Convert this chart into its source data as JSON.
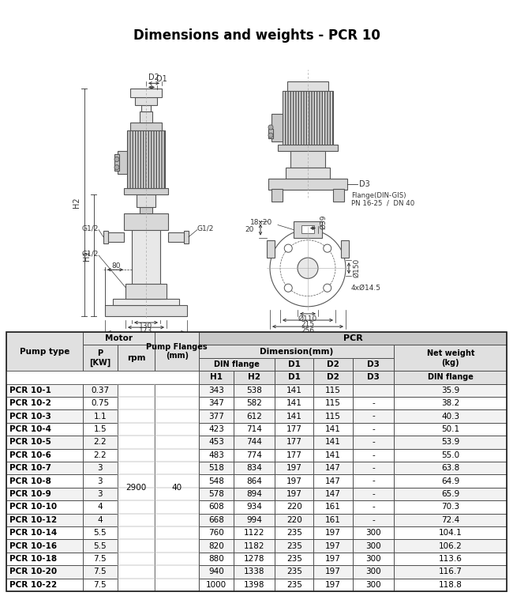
{
  "title": "Dimensions and weights - PCR 10",
  "title_fontsize": 12,
  "rows": [
    [
      "PCR 10-1",
      "0.37",
      "343",
      "538",
      "141",
      "115",
      "",
      "35.9"
    ],
    [
      "PCR 10-2",
      "0.75",
      "347",
      "582",
      "141",
      "115",
      "-",
      "38.2"
    ],
    [
      "PCR 10-3",
      "1.1",
      "377",
      "612",
      "141",
      "115",
      "-",
      "40.3"
    ],
    [
      "PCR 10-4",
      "1.5",
      "423",
      "714",
      "177",
      "141",
      "-",
      "50.1"
    ],
    [
      "PCR 10-5",
      "2.2",
      "453",
      "744",
      "177",
      "141",
      "-",
      "53.9"
    ],
    [
      "PCR 10-6",
      "2.2",
      "483",
      "774",
      "177",
      "141",
      "-",
      "55.0"
    ],
    [
      "PCR 10-7",
      "3",
      "518",
      "834",
      "197",
      "147",
      "-",
      "63.8"
    ],
    [
      "PCR 10-8",
      "3",
      "548",
      "864",
      "197",
      "147",
      "-",
      "64.9"
    ],
    [
      "PCR 10-9",
      "3",
      "578",
      "894",
      "197",
      "147",
      "-",
      "65.9"
    ],
    [
      "PCR 10-10",
      "4",
      "608",
      "934",
      "220",
      "161",
      "-",
      "70.3"
    ],
    [
      "PCR 10-12",
      "4",
      "668",
      "994",
      "220",
      "161",
      "-",
      "72.4"
    ],
    [
      "PCR 10-14",
      "5.5",
      "760",
      "1122",
      "235",
      "197",
      "300",
      "104.1"
    ],
    [
      "PCR 10-16",
      "5.5",
      "820",
      "1182",
      "235",
      "197",
      "300",
      "106.2"
    ],
    [
      "PCR 10-18",
      "7.5",
      "880",
      "1278",
      "235",
      "197",
      "300",
      "113.6"
    ],
    [
      "PCR 10-20",
      "7.5",
      "940",
      "1338",
      "235",
      "197",
      "300",
      "116.7"
    ],
    [
      "PCR 10-22",
      "7.5",
      "1000",
      "1398",
      "235",
      "197",
      "300",
      "118.8"
    ]
  ],
  "bg_color": "#ffffff",
  "line_color": "#555555",
  "dim_color": "#333333",
  "text_color": "#000000"
}
